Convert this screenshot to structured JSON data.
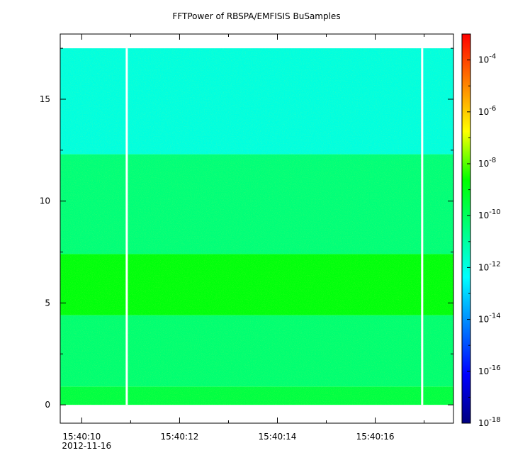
{
  "chart_data": {
    "type": "heatmap",
    "title": "FFTPower of RBSPA/EMFISIS  BuSamples",
    "xlabel": "",
    "ylabel": "",
    "date_label": "2012-11-16",
    "x_ticks": [
      "15:40:10",
      "15:40:12",
      "15:40:14",
      "15:40:16"
    ],
    "x_start_label": "15:40:10",
    "x_range_seconds": [
      -0.44,
      7.6
    ],
    "ylim": [
      -0.9,
      18.2
    ],
    "y_ticks": [
      0,
      5,
      10,
      15
    ],
    "data_y_range": [
      0,
      17.5
    ],
    "gaps_seconds": [
      0.92,
      6.96
    ],
    "colorbar": {
      "scale": "log",
      "range": [
        1e-18,
        0.001
      ],
      "tick_labels": [
        {
          "base": "10",
          "exp": "-4",
          "value": -4
        },
        {
          "base": "10",
          "exp": "-6",
          "value": -6
        },
        {
          "base": "10",
          "exp": "-8",
          "value": -8
        },
        {
          "base": "10",
          "exp": "-10",
          "value": -10
        },
        {
          "base": "10",
          "exp": "-12",
          "value": -12
        },
        {
          "base": "10",
          "exp": "-14",
          "value": -14
        },
        {
          "base": "10",
          "exp": "-16",
          "value": -16
        },
        {
          "base": "10",
          "exp": "-18",
          "value": -18
        }
      ],
      "colors": [
        "#00007f",
        "#0000ff",
        "#007fff",
        "#00ffff",
        "#00ff7f",
        "#00ff00",
        "#ffff00",
        "#ff7f00",
        "#ff0000"
      ]
    },
    "bands": [
      {
        "y_from": 0,
        "y_to": 0.9,
        "log_power": -9.6
      },
      {
        "y_from": 0.9,
        "y_to": 4.4,
        "log_power": -10.3
      },
      {
        "y_from": 4.4,
        "y_to": 7.4,
        "log_power": -8.8
      },
      {
        "y_from": 7.4,
        "y_to": 12.3,
        "log_power": -10.4
      },
      {
        "y_from": 12.3,
        "y_to": 17.5,
        "log_power": -11.9
      }
    ]
  }
}
